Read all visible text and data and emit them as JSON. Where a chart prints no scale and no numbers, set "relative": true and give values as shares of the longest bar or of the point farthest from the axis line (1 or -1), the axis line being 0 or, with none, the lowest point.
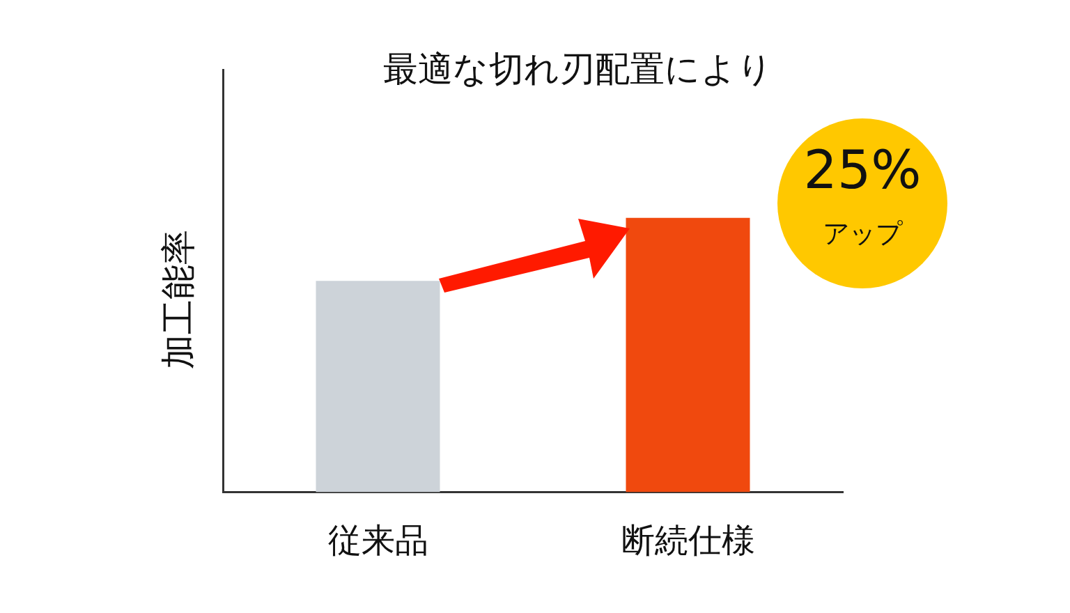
{
  "chart_data": {
    "type": "bar",
    "title": "最適な切れ刃配置により",
    "ylabel": "加工能率",
    "categories": [
      "従来品",
      "断続仕様"
    ],
    "values": [
      0.77,
      1
    ],
    "colors": [
      "#cdd3d9",
      "#f0490e"
    ],
    "relative": true,
    "grid": false,
    "annotations": [
      "25%",
      "アップ"
    ]
  }
}
